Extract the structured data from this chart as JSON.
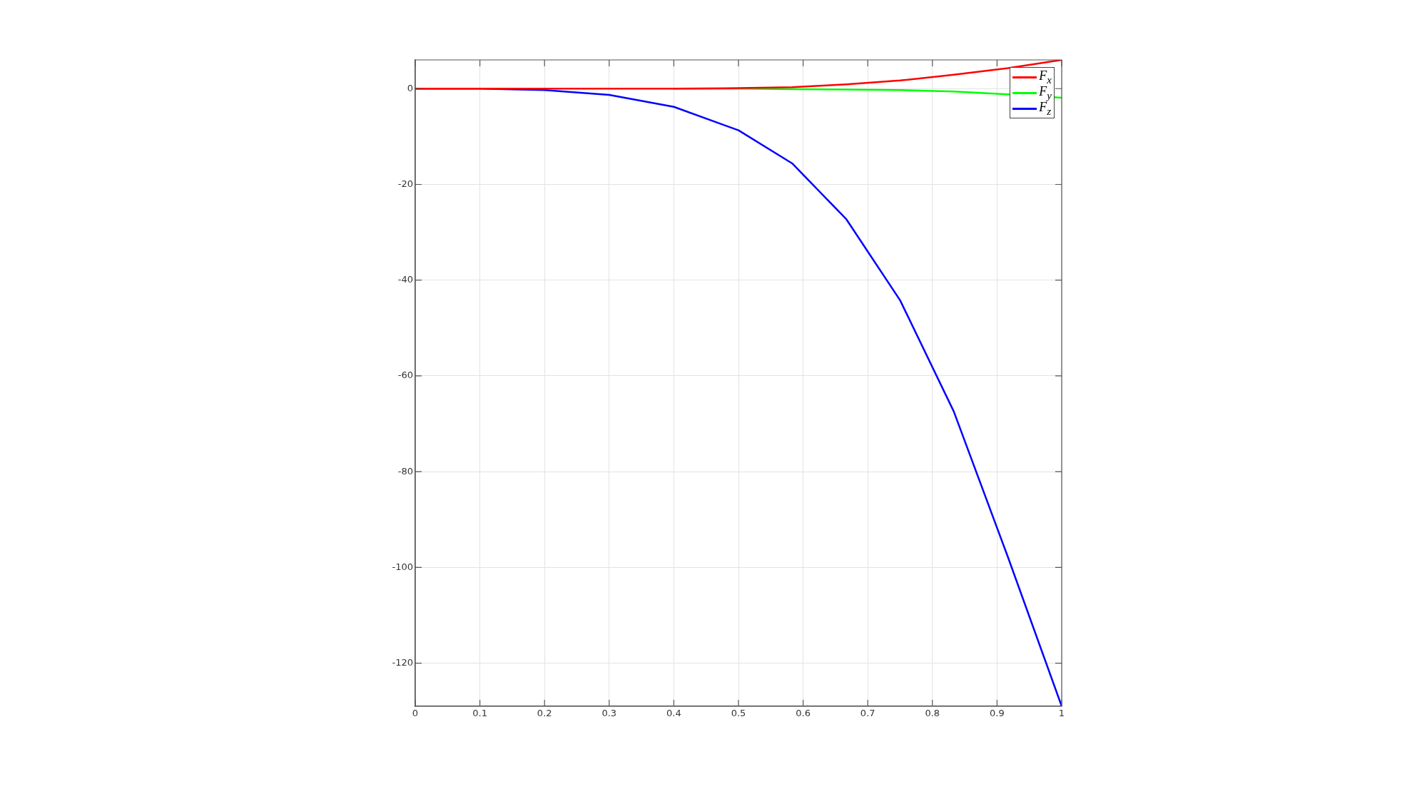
{
  "chart_data": {
    "type": "line",
    "x": [
      0,
      0.1,
      0.2,
      0.3,
      0.4,
      0.5,
      0.583,
      0.667,
      0.75,
      0.833,
      0.917,
      1
    ],
    "series": [
      {
        "name": "F$_{x}$",
        "color": "#ff0000",
        "values": [
          0,
          0,
          0,
          0,
          0,
          0.1,
          0.3,
          0.9,
          1.7,
          2.9,
          4.3,
          6
        ]
      },
      {
        "name": "F$_{y}$",
        "color": "#00ff00",
        "values": [
          null,
          null,
          null,
          null,
          0,
          0,
          -0.1,
          -0.2,
          -0.3,
          -0.6,
          -1.2,
          -1.9
        ]
      },
      {
        "name": "F$_{z}$",
        "color": "#0000ff",
        "values": [
          0,
          0,
          -0.3,
          -1.3,
          -3.8,
          -8.7,
          -15.6,
          -27.3,
          -44.2,
          -67.4,
          -97.9,
          -129
        ]
      }
    ],
    "xlim": [
      0,
      1
    ],
    "xticks": [
      0,
      0.1,
      0.2,
      0.3,
      0.4,
      0.5,
      0.6,
      0.7,
      0.8,
      0.9,
      1
    ],
    "ylim": [
      -129,
      6
    ],
    "yticks": [
      -120,
      -100,
      -80,
      -60,
      -40,
      -20,
      0
    ],
    "grid": true,
    "legend": "top right",
    "marker": "none",
    "line_style": "solid"
  }
}
